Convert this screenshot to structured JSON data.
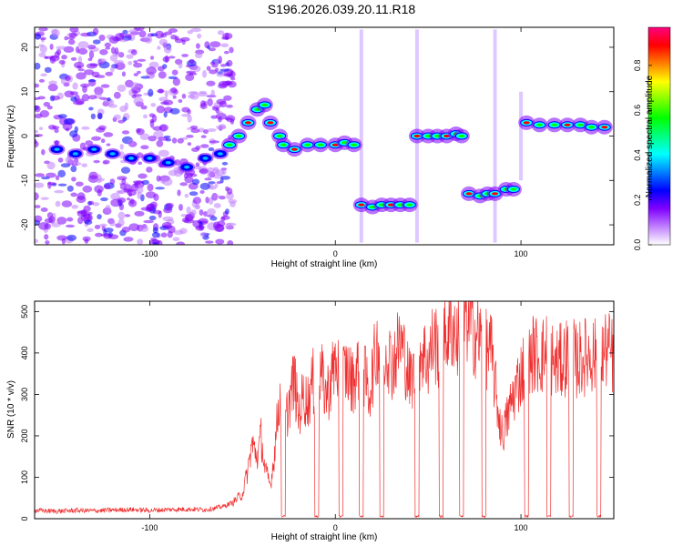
{
  "title": "S196.2026.039.20.11.R18",
  "chart_data": [
    {
      "type": "heatmap",
      "xlabel": "Height of straight line (km)",
      "ylabel": "Frequency (Hz)",
      "xlim": [
        -162,
        150
      ],
      "ylim": [
        -24.5,
        24.5
      ],
      "xticks": [
        -100,
        0,
        100
      ],
      "yticks": [
        -20,
        -10,
        0,
        10,
        20
      ],
      "colorbar": {
        "label": "Normalized spectral amplitude",
        "ticks": [
          0.0,
          0.2,
          0.4,
          0.6,
          0.8
        ],
        "range": [
          0,
          0.97
        ],
        "colors": [
          "#ffffff",
          "#c080ff",
          "#8000ff",
          "#0000ff",
          "#0080ff",
          "#00ffff",
          "#00ff80",
          "#00ff00",
          "#80ff00",
          "#ffff00",
          "#ff8000",
          "#ff0000",
          "#ff0080"
        ]
      },
      "ridge": [
        {
          "x": -150,
          "y": -3
        },
        {
          "x": -140,
          "y": -4
        },
        {
          "x": -130,
          "y": -3
        },
        {
          "x": -120,
          "y": -4
        },
        {
          "x": -110,
          "y": -5
        },
        {
          "x": -100,
          "y": -5
        },
        {
          "x": -90,
          "y": -6
        },
        {
          "x": -80,
          "y": -7
        },
        {
          "x": -70,
          "y": -5
        },
        {
          "x": -62,
          "y": -4
        },
        {
          "x": -57,
          "y": -2
        },
        {
          "x": -52,
          "y": 0
        },
        {
          "x": -47,
          "y": 3
        },
        {
          "x": -42,
          "y": 6
        },
        {
          "x": -38,
          "y": 7
        },
        {
          "x": -35,
          "y": 3
        },
        {
          "x": -30,
          "y": 0
        },
        {
          "x": -28,
          "y": -2
        },
        {
          "x": -22,
          "y": -3
        },
        {
          "x": -15,
          "y": -2
        },
        {
          "x": -8,
          "y": -2
        },
        {
          "x": 0,
          "y": -2
        },
        {
          "x": 5,
          "y": -1.5
        },
        {
          "x": 10,
          "y": -2
        },
        {
          "x": 14,
          "y": -15.5
        },
        {
          "x": 20,
          "y": -16
        },
        {
          "x": 25,
          "y": -15.5
        },
        {
          "x": 30,
          "y": -15.5
        },
        {
          "x": 35,
          "y": -15.5
        },
        {
          "x": 40,
          "y": -15.5
        },
        {
          "x": 44,
          "y": 0
        },
        {
          "x": 50,
          "y": 0
        },
        {
          "x": 55,
          "y": 0
        },
        {
          "x": 60,
          "y": 0
        },
        {
          "x": 65,
          "y": 0.5
        },
        {
          "x": 68,
          "y": 0
        },
        {
          "x": 72,
          "y": -13
        },
        {
          "x": 78,
          "y": -13.5
        },
        {
          "x": 82,
          "y": -13
        },
        {
          "x": 86,
          "y": -13
        },
        {
          "x": 92,
          "y": -12
        },
        {
          "x": 96,
          "y": -12
        },
        {
          "x": 103,
          "y": 3
        },
        {
          "x": 110,
          "y": 2.5
        },
        {
          "x": 118,
          "y": 2.5
        },
        {
          "x": 125,
          "y": 2.5
        },
        {
          "x": 132,
          "y": 2.5
        },
        {
          "x": 138,
          "y": 2
        },
        {
          "x": 145,
          "y": 2
        }
      ]
    },
    {
      "type": "line",
      "xlabel": "Height of straight line (km)",
      "ylabel": "SNR (10 * v/v)",
      "xlim": [
        -162,
        150
      ],
      "ylim": [
        0,
        525
      ],
      "xticks": [
        -100,
        0,
        100
      ],
      "yticks": [
        0,
        100,
        200,
        300,
        400,
        500
      ],
      "color": "#f03030",
      "series": [
        {
          "x": [
            -162,
            -150,
            -140,
            -130,
            -120,
            -110,
            -100,
            -90,
            -80,
            -70,
            -65,
            -60,
            -55,
            -50,
            -47,
            -45,
            -42,
            -40,
            -38,
            -35,
            -33,
            -30,
            -28,
            -25,
            -22,
            -20,
            -17,
            -15,
            -12,
            -10,
            -8,
            -5,
            -3,
            0,
            3,
            6,
            9,
            12,
            14,
            18,
            20,
            23,
            25,
            28,
            30,
            33,
            35,
            38,
            40,
            43,
            46,
            50,
            53,
            57,
            60,
            63,
            66,
            70,
            73,
            77,
            80,
            84,
            88,
            90,
            93,
            96,
            100,
            103,
            107,
            111,
            115,
            118,
            122,
            126,
            130,
            134,
            138,
            142,
            146,
            150
          ],
          "y": [
            20,
            18,
            20,
            19,
            21,
            22,
            20,
            22,
            23,
            22,
            25,
            30,
            40,
            60,
            120,
            180,
            150,
            200,
            120,
            80,
            150,
            300,
            200,
            280,
            340,
            250,
            300,
            280,
            330,
            260,
            350,
            300,
            320,
            380,
            340,
            360,
            330,
            360,
            380,
            300,
            350,
            430,
            380,
            420,
            370,
            400,
            430,
            380,
            330,
            360,
            410,
            380,
            430,
            400,
            450,
            470,
            430,
            500,
            460,
            440,
            420,
            400,
            250,
            200,
            250,
            300,
            350,
            380,
            400,
            390,
            410,
            370,
            380,
            400,
            380,
            390,
            400,
            380,
            410,
            390
          ]
        }
      ]
    }
  ]
}
